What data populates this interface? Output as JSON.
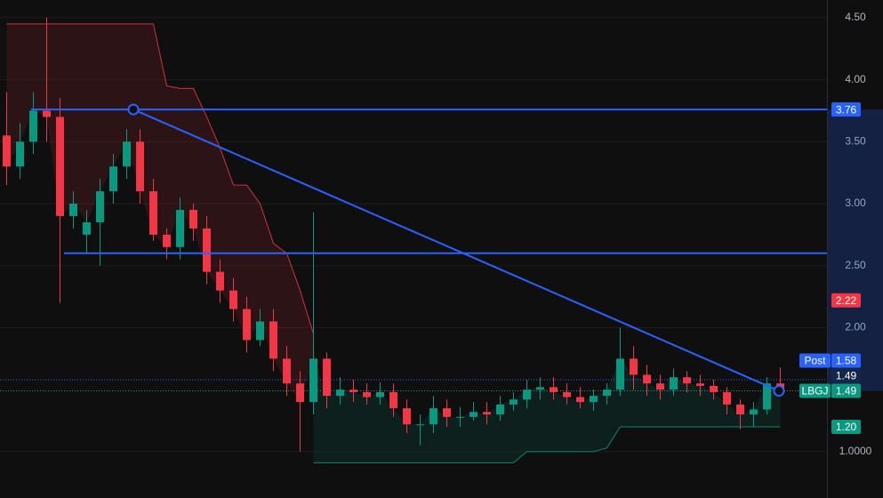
{
  "chart_data": {
    "type": "candlestick",
    "x": [
      0,
      1,
      2,
      3,
      4,
      5,
      6,
      7,
      8,
      9,
      10,
      11,
      12,
      13,
      14,
      15,
      16,
      17,
      18,
      19,
      20,
      21,
      22,
      23,
      24,
      25,
      26,
      27,
      28,
      29,
      30,
      31,
      32,
      33,
      34,
      35,
      36,
      37,
      38,
      39,
      40,
      41,
      42,
      43,
      44,
      45,
      46,
      47,
      48,
      49,
      50,
      51,
      52,
      53,
      54,
      55,
      56,
      57,
      58
    ],
    "open": [
      3.55,
      3.3,
      3.5,
      3.75,
      3.7,
      2.9,
      2.75,
      2.85,
      3.1,
      3.3,
      3.5,
      3.1,
      2.75,
      2.65,
      2.95,
      2.8,
      2.45,
      2.3,
      2.15,
      1.9,
      2.05,
      1.75,
      1.55,
      1.4,
      1.75,
      1.45,
      1.5,
      1.48,
      1.44,
      1.48,
      1.35,
      1.22,
      1.22,
      1.35,
      1.28,
      1.28,
      1.32,
      1.3,
      1.38,
      1.42,
      1.5,
      1.52,
      1.48,
      1.44,
      1.4,
      1.45,
      1.5,
      1.75,
      1.62,
      1.55,
      1.5,
      1.6,
      1.55,
      1.53,
      1.48,
      1.38,
      1.3,
      1.34,
      1.55
    ],
    "high": [
      3.9,
      3.65,
      3.9,
      4.5,
      3.85,
      3.1,
      2.95,
      3.2,
      3.4,
      3.6,
      3.6,
      3.2,
      2.8,
      3.05,
      3.0,
      2.9,
      2.55,
      2.4,
      2.25,
      2.15,
      2.15,
      1.85,
      1.65,
      2.93,
      1.8,
      1.6,
      1.58,
      1.55,
      1.56,
      1.55,
      1.42,
      1.3,
      1.45,
      1.42,
      1.36,
      1.4,
      1.4,
      1.45,
      1.48,
      1.58,
      1.6,
      1.6,
      1.55,
      1.52,
      1.5,
      1.55,
      2.0,
      1.85,
      1.7,
      1.62,
      1.67,
      1.65,
      1.62,
      1.58,
      1.52,
      1.42,
      1.4,
      1.6,
      1.68
    ],
    "low": [
      3.15,
      3.2,
      3.4,
      3.5,
      2.2,
      2.8,
      2.6,
      2.5,
      3.0,
      3.2,
      3.0,
      2.7,
      2.55,
      2.55,
      2.7,
      2.35,
      2.2,
      2.05,
      1.8,
      1.85,
      1.65,
      1.45,
      1.0,
      1.3,
      1.35,
      1.38,
      1.4,
      1.38,
      1.38,
      1.28,
      1.15,
      1.05,
      1.15,
      1.2,
      1.2,
      1.25,
      1.22,
      1.25,
      1.33,
      1.35,
      1.42,
      1.42,
      1.38,
      1.35,
      1.33,
      1.38,
      1.45,
      1.5,
      1.45,
      1.42,
      1.45,
      1.48,
      1.45,
      1.42,
      1.3,
      1.18,
      1.2,
      1.3,
      1.45
    ],
    "close": [
      3.3,
      3.5,
      3.75,
      3.7,
      2.9,
      3.0,
      2.85,
      3.1,
      3.3,
      3.5,
      3.1,
      2.75,
      2.65,
      2.95,
      2.8,
      2.45,
      2.3,
      2.15,
      1.9,
      2.05,
      1.75,
      1.55,
      1.4,
      1.75,
      1.45,
      1.5,
      1.48,
      1.44,
      1.48,
      1.35,
      1.22,
      1.22,
      1.35,
      1.28,
      1.28,
      1.32,
      1.3,
      1.38,
      1.42,
      1.5,
      1.52,
      1.48,
      1.44,
      1.4,
      1.45,
      1.5,
      1.75,
      1.62,
      1.55,
      1.5,
      1.6,
      1.55,
      1.53,
      1.48,
      1.38,
      1.3,
      1.34,
      1.55,
      1.49
    ],
    "up_color": "#089981",
    "down_color": "#f23645",
    "upper_band": {
      "color": "#f23645",
      "values": [
        4.45,
        4.45,
        4.45,
        4.45,
        4.45,
        4.45,
        4.45,
        4.45,
        4.45,
        4.45,
        4.45,
        4.45,
        3.95,
        3.93,
        3.93,
        3.7,
        3.45,
        3.15,
        3.15,
        3.0,
        2.68,
        2.6,
        2.3,
        1.95,
        null,
        null,
        null,
        null,
        null,
        null,
        null,
        null,
        null,
        null,
        null,
        null,
        null,
        null,
        null,
        null,
        null,
        null,
        null,
        null,
        null,
        null,
        null,
        null,
        null,
        null,
        null,
        null,
        null,
        null,
        null,
        null,
        null,
        null,
        null
      ]
    },
    "lower_band": {
      "color": "#089981",
      "values": [
        null,
        null,
        null,
        null,
        null,
        null,
        null,
        null,
        null,
        null,
        null,
        null,
        null,
        null,
        null,
        null,
        null,
        null,
        null,
        null,
        null,
        null,
        null,
        0.91,
        0.91,
        0.91,
        0.91,
        0.91,
        0.91,
        0.91,
        0.91,
        0.91,
        0.91,
        0.91,
        0.91,
        0.91,
        0.91,
        0.91,
        0.91,
        1.0,
        1.0,
        1.0,
        1.0,
        1.0,
        1.0,
        1.03,
        1.2,
        1.2,
        1.2,
        1.2,
        1.2,
        1.2,
        1.2,
        1.2,
        1.2,
        1.2,
        1.2,
        1.2,
        1.2
      ]
    },
    "trendlines": [
      {
        "x": [
          1.83,
          61.5
        ],
        "values": [
          3.76,
          3.76
        ]
      },
      {
        "x": [
          4.3,
          61.5
        ],
        "values": [
          2.6,
          2.6
        ]
      },
      {
        "x": [
          9.5,
          57.9
        ],
        "values": [
          3.76,
          1.49
        ],
        "anchors": true
      }
    ],
    "trend_color": "#2962ff",
    "xlim": [
      -0.5,
      61.5
    ],
    "ylim": [
      0.626,
      4.643
    ],
    "yticks": [
      {
        "value": 4.5,
        "label": "4.50"
      },
      {
        "value": 4.0,
        "label": "4.00"
      },
      {
        "value": 3.5,
        "label": "3.50"
      },
      {
        "value": 3.0,
        "label": "3.00"
      },
      {
        "value": 2.5,
        "label": "2.50"
      },
      {
        "value": 2.0,
        "label": "2.00"
      },
      {
        "value": 1.0,
        "label": "1.0000"
      }
    ],
    "grid": true,
    "price_tags": [
      {
        "text": "3.76",
        "value": 3.76,
        "color": "#2962ff"
      },
      {
        "text": "2.22",
        "value": 2.22,
        "color": "#f23645"
      },
      {
        "name": "Post",
        "text": "1.58",
        "value": 1.58,
        "color": "#2962ff",
        "dotted_line": true
      },
      {
        "name": "LBGJ",
        "text": "1.49",
        "value": 1.49,
        "color": "#089981",
        "dotted_line": true
      },
      {
        "text": "1.49",
        "value": 1.49,
        "color": "#16254a"
      },
      {
        "text": "1.20",
        "value": 1.2,
        "color": "#089981"
      }
    ]
  }
}
